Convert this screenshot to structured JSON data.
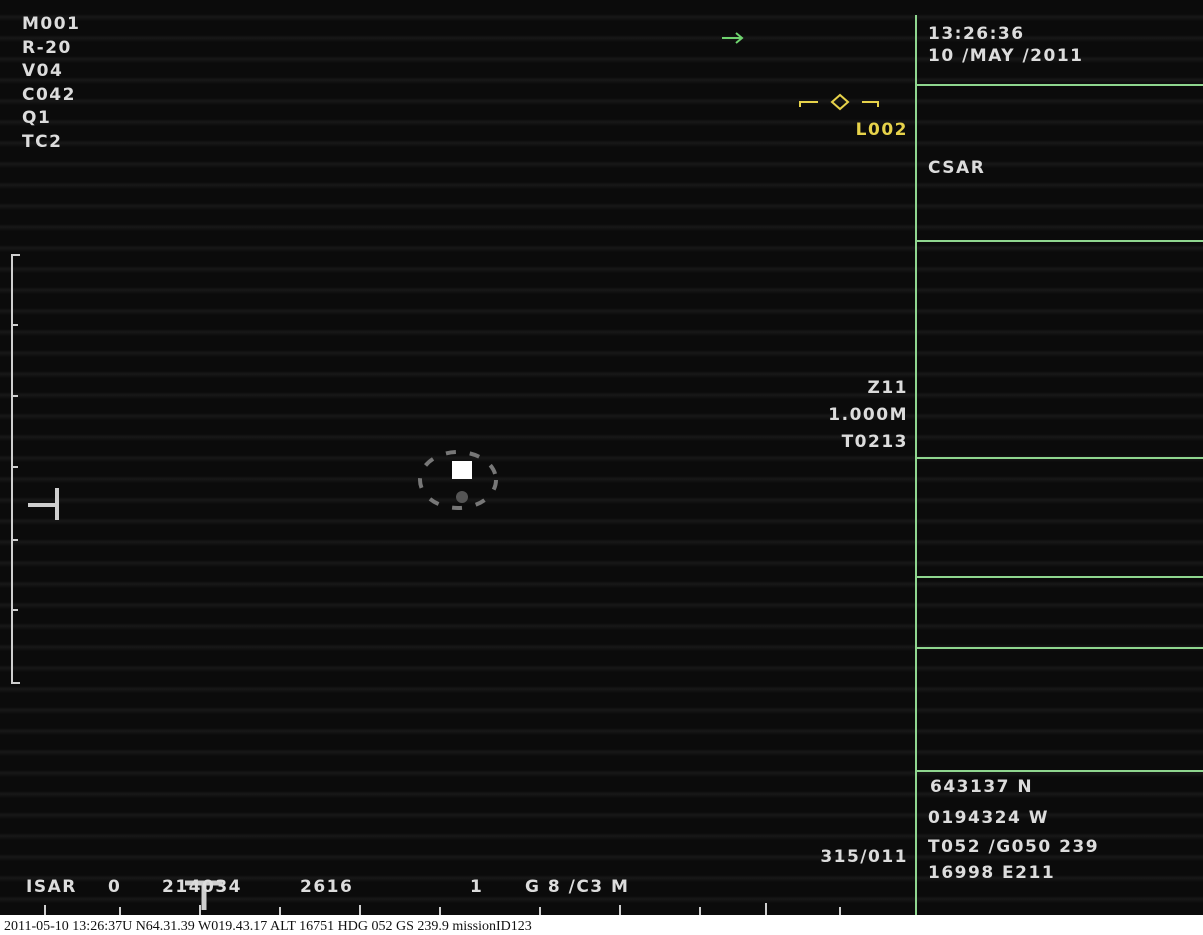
{
  "overlay": {
    "left_codes": [
      "M001",
      "R-20",
      "V04",
      "C042",
      "Q1",
      "TC2"
    ],
    "target_label": "L002",
    "zoom_info": [
      "Z11",
      "1.000M",
      "T0213"
    ],
    "bearing": "315/011"
  },
  "side_panel": {
    "time": "13:26:36",
    "date": "10 /MAY /2011",
    "mode": "CSAR",
    "position": [
      "643137 N",
      "0194324 W",
      "T052 /G050 239",
      "16998 E211"
    ]
  },
  "status_bar": [
    "ISAR",
    "0",
    "214034",
    "2616",
    "1",
    "G 8 /C3 M"
  ],
  "caption": "2011-05-10 13:26:37U N64.31.39 W019.43.17 ALT 16751 HDG 052 GS 239.9 missionID123"
}
